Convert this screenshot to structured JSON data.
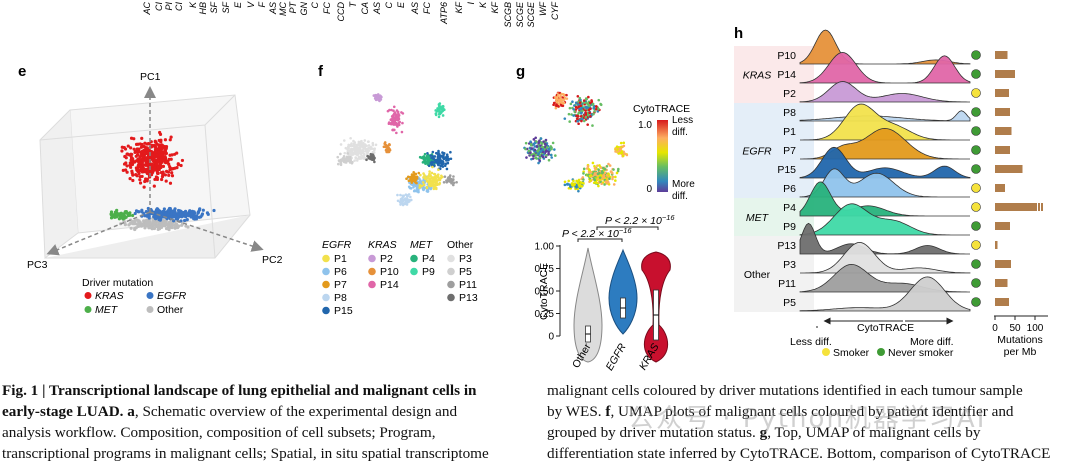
{
  "top_fragment": [
    "AC",
    "CI",
    "PI",
    "CI",
    "K",
    "HB",
    "SF",
    "SF",
    "E",
    "V",
    "F",
    "AS",
    "MC",
    "PT",
    "GN",
    "C",
    "FC",
    "CCD",
    "T",
    "CA",
    "AS",
    "C",
    "E",
    "AS",
    "FC",
    "ATP6",
    "KF",
    "I",
    "K",
    "KF",
    "SCGB",
    "SCGE",
    "SCGE",
    "WF",
    "CYF"
  ],
  "panel_e": {
    "label": "e",
    "axes": [
      "PC1",
      "PC2",
      "PC3"
    ],
    "legend_title": "Driver mutation",
    "legend": [
      {
        "name": "KRAS",
        "color": "#e31a1c",
        "italic": true
      },
      {
        "name": "EGFR",
        "color": "#3a75c4",
        "italic": true
      },
      {
        "name": "MET",
        "color": "#4daf4a",
        "italic": true
      },
      {
        "name": "Other",
        "color": "#bdbdbd",
        "italic": false
      }
    ]
  },
  "panel_f": {
    "label": "f",
    "groups": [
      {
        "title": "EGFR",
        "items": [
          {
            "id": "P1",
            "color": "#f2e14c"
          },
          {
            "id": "P6",
            "color": "#8fc3ec"
          },
          {
            "id": "P7",
            "color": "#e39a1c"
          },
          {
            "id": "P8",
            "color": "#bcd6ef"
          },
          {
            "id": "P15",
            "color": "#2166ac"
          }
        ]
      },
      {
        "title": "KRAS",
        "items": [
          {
            "id": "P2",
            "color": "#c89ad6"
          },
          {
            "id": "P10",
            "color": "#e6913a"
          },
          {
            "id": "P14",
            "color": "#e066a8"
          }
        ]
      },
      {
        "title": "MET",
        "items": [
          {
            "id": "P4",
            "color": "#28b27c"
          },
          {
            "id": "P9",
            "color": "#3fd9a6"
          }
        ]
      },
      {
        "title": "Other",
        "items": [
          {
            "id": "P3",
            "color": "#e0e0e0"
          },
          {
            "id": "P5",
            "color": "#cfcfcf"
          },
          {
            "id": "P11",
            "color": "#9e9e9e"
          },
          {
            "id": "P13",
            "color": "#6e6e6e"
          }
        ]
      }
    ]
  },
  "panel_g": {
    "label": "g",
    "colorbar_title": "CytoTRACE",
    "colorbar_ticks": [
      "1.0",
      "0"
    ],
    "colorbar_top_label": [
      "Less",
      "diff."
    ],
    "colorbar_bottom_label": [
      "More",
      "diff."
    ],
    "pvalue_1": "P < 2.2 × 10",
    "pvalue_2": "P < 2.2 × 10",
    "pvalue_exp": "−16",
    "violin_ylabel": "CytoTRACE",
    "violin_yticks": [
      "1.00",
      "0.75",
      "0.50",
      "0.25",
      "0"
    ],
    "violin_categories": [
      "Other",
      "EGFR",
      "KRAS"
    ],
    "violin_colors": [
      "#dcdcdc",
      "#2d7cc0",
      "#c8102e"
    ]
  },
  "panel_h": {
    "label": "h",
    "groups": [
      {
        "name": "KRAS",
        "bg": "#fbe9ea"
      },
      {
        "name": "EGFR",
        "bg": "#e4eef8"
      },
      {
        "name": "MET",
        "bg": "#e6f5ec"
      },
      {
        "name": "Other",
        "bg": "#f2f2f2"
      }
    ],
    "rows": [
      {
        "id": "P10",
        "group": "KRAS",
        "color": "#e6913a",
        "smoker": false,
        "mutations": 25
      },
      {
        "id": "P14",
        "group": "KRAS",
        "color": "#e066a8",
        "smoker": false,
        "mutations": 40
      },
      {
        "id": "P2",
        "group": "KRAS",
        "color": "#c89ad6",
        "smoker": true,
        "mutations": 28
      },
      {
        "id": "P8",
        "group": "EGFR",
        "color": "#bcd6ef",
        "smoker": false,
        "mutations": 30
      },
      {
        "id": "P1",
        "group": "EGFR",
        "color": "#f2e14c",
        "smoker": false,
        "mutations": 33
      },
      {
        "id": "P7",
        "group": "EGFR",
        "color": "#e39a1c",
        "smoker": false,
        "mutations": 30
      },
      {
        "id": "P15",
        "group": "EGFR",
        "color": "#2166ac",
        "smoker": false,
        "mutations": 55
      },
      {
        "id": "P6",
        "group": "EGFR",
        "color": "#8fc3ec",
        "smoker": true,
        "mutations": 20
      },
      {
        "id": "P4",
        "group": "MET",
        "color": "#28b27c",
        "smoker": true,
        "mutations": 130
      },
      {
        "id": "P9",
        "group": "MET",
        "color": "#3fd9a6",
        "smoker": false,
        "mutations": 30
      },
      {
        "id": "P13",
        "group": "Other",
        "color": "#6e6e6e",
        "smoker": true,
        "mutations": 5
      },
      {
        "id": "P3",
        "group": "Other",
        "color": "#e0e0e0",
        "smoker": false,
        "mutations": 32
      },
      {
        "id": "P11",
        "group": "Other",
        "color": "#9e9e9e",
        "smoker": false,
        "mutations": 25
      },
      {
        "id": "P5",
        "group": "Other",
        "color": "#cfcfcf",
        "smoker": false,
        "mutations": 28
      }
    ],
    "xaxis_label": "CytoTRACE",
    "xaxis_left": "Less diff.",
    "xaxis_right": "More diff.",
    "mut_ticks": [
      "0",
      "50",
      "100"
    ],
    "mut_label_1": "Mutations",
    "mut_label_2": "per Mb",
    "legend_smoker": "Smoker",
    "legend_never": "Never smoker",
    "smoker_color": "#f5e23c",
    "never_color": "#3f9b35",
    "bar_color": "#b07d4b"
  },
  "caption": {
    "bold_title": "Fig. 1 | Transcriptional landscape of lung epithelial and malignant cells in",
    "bold_title_2": "early-stage LUAD.",
    "bold_a": "a",
    "line1_rest": ", Schematic overview of the experimental design and",
    "line2": "analysis workflow. Composition, composition of cell subsets; Program,",
    "line3": "transcriptional programs in malignant cells; Spatial, in situ spatial transcriptome",
    "right_line1": "malignant cells coloured by driver mutations identified in each tumour sample",
    "right_line2_pre": "by WES. ",
    "bold_f": "f",
    "right_line2_post": ", UMAP plots of malignant cells coloured by patient identifier and",
    "right_line3": "grouped by driver mutation status. ",
    "bold_g": "g",
    "right_line3_post": ", Top, UMAP of malignant cells by",
    "right_line4": "differentiation state inferred by CytoTRACE. Bottom, comparison of CytoTRACE"
  },
  "watermark": "公众号 · Python机器学习AI"
}
